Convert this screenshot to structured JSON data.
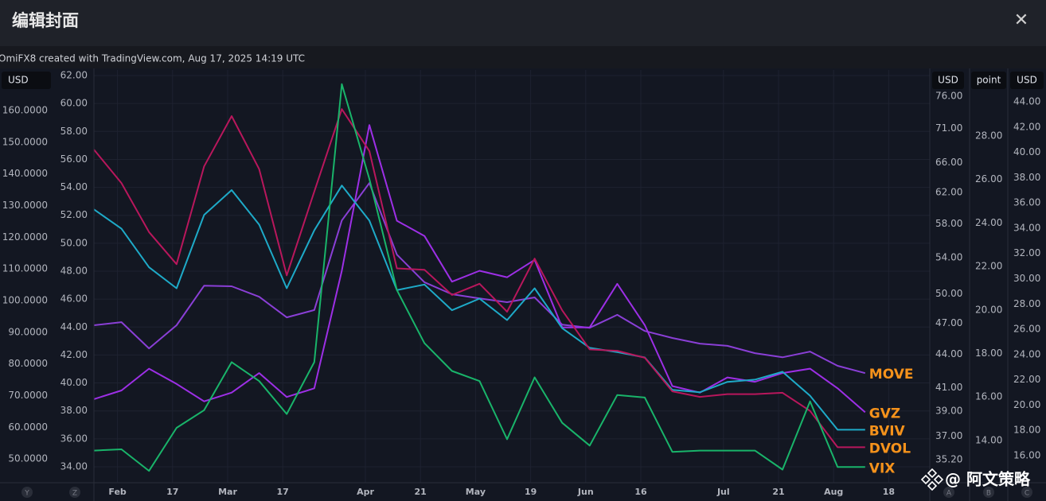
{
  "header": {
    "title": "编辑封面",
    "close": "✕"
  },
  "caption": "OmiFX8 created with TradingView.com, Aug 17, 2025 14:19 UTC",
  "watermark": "@ 阿文策略",
  "axis_badges": [
    "Y",
    "Z",
    "A",
    "B",
    "C"
  ],
  "chart_data": {
    "type": "line",
    "categories": [
      null,
      "Feb",
      null,
      "17",
      null,
      "Mar",
      null,
      "17",
      null,
      null,
      "Apr",
      null,
      "21",
      null,
      "May",
      null,
      "19",
      null,
      "Jun",
      null,
      "16",
      null,
      null,
      "Jul",
      null,
      "21",
      null,
      "Aug",
      null,
      "18"
    ],
    "grid": true,
    "yunit": "USD",
    "y2unit": "USD",
    "y4unit": "USD",
    "y5unit": "point",
    "ylim": [
      42.5,
      172.8
    ],
    "yticks": [
      {
        "value": 50,
        "label": "50.0000"
      },
      {
        "value": 60,
        "label": "60.0000"
      },
      {
        "value": 70,
        "label": "70.0000"
      },
      {
        "value": 80,
        "label": "80.0000"
      },
      {
        "value": 90,
        "label": "90.0000"
      },
      {
        "value": 100,
        "label": "100.0000"
      },
      {
        "value": 110,
        "label": "110.0000"
      },
      {
        "value": 120,
        "label": "120.0000"
      },
      {
        "value": 130,
        "label": "130.0000"
      },
      {
        "value": 140,
        "label": "140.0000"
      },
      {
        "value": 150,
        "label": "150.0000"
      },
      {
        "value": 160,
        "label": "160.0000"
      }
    ],
    "y3lim": [
      32.86,
      62.4
    ],
    "y3ticks": [
      {
        "value": 34,
        "label": "34.00"
      },
      {
        "value": 36,
        "label": "36.00"
      },
      {
        "value": 38,
        "label": "38.00"
      },
      {
        "value": 40,
        "label": "40.00"
      },
      {
        "value": 42,
        "label": "42.00"
      },
      {
        "value": 44,
        "label": "44.00"
      },
      {
        "value": 46,
        "label": "46.00"
      },
      {
        "value": 48,
        "label": "48.00"
      },
      {
        "value": 50,
        "label": "50.00"
      },
      {
        "value": 52,
        "label": "52.00"
      },
      {
        "value": 54,
        "label": "54.00"
      },
      {
        "value": 56,
        "label": "56.00"
      },
      {
        "value": 58,
        "label": "58.00"
      },
      {
        "value": 60,
        "label": "60.00"
      },
      {
        "value": 62,
        "label": "62.00"
      }
    ],
    "y4lim": [
      33.52,
      80.34
    ],
    "y4log": true,
    "y4ticks": [
      {
        "value": 35.2,
        "label": "35.20"
      },
      {
        "value": 37,
        "label": "37.00"
      },
      {
        "value": 39,
        "label": "39.00"
      },
      {
        "value": 41,
        "label": "41.00"
      },
      {
        "value": 44,
        "label": "44.00"
      },
      {
        "value": 47,
        "label": "47.00"
      },
      {
        "value": 50,
        "label": "50.00"
      },
      {
        "value": 54,
        "label": "54.00"
      },
      {
        "value": 58,
        "label": "58.00"
      },
      {
        "value": 62,
        "label": "62.00"
      },
      {
        "value": 66,
        "label": "66.00"
      },
      {
        "value": 71,
        "label": "71.00"
      },
      {
        "value": 76,
        "label": "76.00"
      }
    ],
    "y5lim": [
      12.06,
      31.03
    ],
    "y5ticks": [
      {
        "value": 14,
        "label": "14.00"
      },
      {
        "value": 16,
        "label": "16.00"
      },
      {
        "value": 18,
        "label": "18.00"
      },
      {
        "value": 20,
        "label": "20.00"
      },
      {
        "value": 22,
        "label": "22.00"
      },
      {
        "value": 24,
        "label": "24.00"
      },
      {
        "value": 26,
        "label": "26.00"
      },
      {
        "value": 28,
        "label": "28.00"
      }
    ],
    "y2lim": [
      13.86,
      46.52
    ],
    "y2ticks": [
      {
        "value": 16,
        "label": "16.00"
      },
      {
        "value": 18,
        "label": "18.00"
      },
      {
        "value": 20,
        "label": "20.00"
      },
      {
        "value": 22,
        "label": "22.00"
      },
      {
        "value": 24,
        "label": "24.00"
      },
      {
        "value": 26,
        "label": "26.00"
      },
      {
        "value": 28,
        "label": "28.00"
      },
      {
        "value": 30,
        "label": "30.00"
      },
      {
        "value": 32,
        "label": "32.00"
      },
      {
        "value": 34,
        "label": "34.00"
      },
      {
        "value": 36,
        "label": "36.00"
      },
      {
        "value": 38,
        "label": "38.00"
      },
      {
        "value": 40,
        "label": "40.00"
      },
      {
        "value": 42,
        "label": "42.00"
      },
      {
        "value": 44,
        "label": "44.00"
      }
    ],
    "label_color": "#f5921b",
    "series": [
      {
        "name": "MOVE",
        "color": "#8a3fd6",
        "axis": "y",
        "values": [
          92.2,
          93.2,
          84.9,
          92.2,
          104.7,
          104.5,
          101.2,
          94.7,
          97.0,
          125.3,
          137.1,
          114.5,
          105.8,
          102.0,
          100.7,
          99.5,
          101.0,
          92.4,
          91.4,
          95.5,
          90.4,
          88.2,
          86.4,
          85.7,
          83.4,
          82.1,
          83.9,
          79.4,
          77.1,
          null
        ]
      },
      {
        "name": "GVZ",
        "color": "#9d2fe6",
        "axis": "y5",
        "values": [
          15.9,
          16.3,
          17.3,
          16.6,
          15.8,
          16.2,
          17.1,
          16.0,
          16.4,
          21.8,
          28.5,
          24.1,
          23.4,
          21.3,
          21.8,
          21.5,
          22.3,
          19.2,
          19.2,
          21.2,
          19.3,
          16.5,
          16.2,
          16.9,
          16.7,
          17.1,
          17.3,
          16.4,
          15.3,
          null
        ]
      },
      {
        "name": "BVIV",
        "color": "#1eaac8",
        "axis": "y4",
        "values": [
          59.8,
          57.4,
          52.9,
          50.6,
          59.1,
          62.3,
          57.9,
          50.6,
          57.2,
          62.9,
          58.4,
          50.4,
          51.0,
          48.3,
          49.5,
          47.3,
          50.6,
          46.5,
          44.6,
          44.2,
          43.7,
          40.8,
          40.6,
          41.5,
          41.7,
          42.4,
          40.3,
          37.5,
          37.5,
          null
        ]
      },
      {
        "name": "DVOL",
        "color": "#b8175c",
        "axis": "y3",
        "values": [
          56.7,
          54.3,
          50.8,
          48.5,
          55.5,
          59.1,
          55.3,
          47.7,
          53.7,
          59.6,
          56.6,
          48.2,
          48.1,
          46.3,
          47.1,
          45.1,
          48.9,
          45.2,
          42.4,
          42.3,
          41.8,
          39.4,
          39.0,
          39.2,
          39.2,
          39.3,
          38.0,
          35.4,
          35.4,
          null
        ]
      },
      {
        "name": "VIX",
        "color": "#19b46a",
        "axis": "y2",
        "values": [
          16.4,
          16.5,
          14.8,
          18.2,
          19.6,
          23.4,
          21.9,
          19.3,
          23.4,
          45.4,
          37.9,
          29.1,
          24.9,
          22.7,
          21.9,
          17.3,
          22.2,
          18.6,
          16.8,
          20.8,
          20.6,
          16.3,
          16.4,
          16.4,
          16.4,
          14.9,
          20.3,
          15.1,
          15.1,
          null
        ]
      }
    ]
  }
}
